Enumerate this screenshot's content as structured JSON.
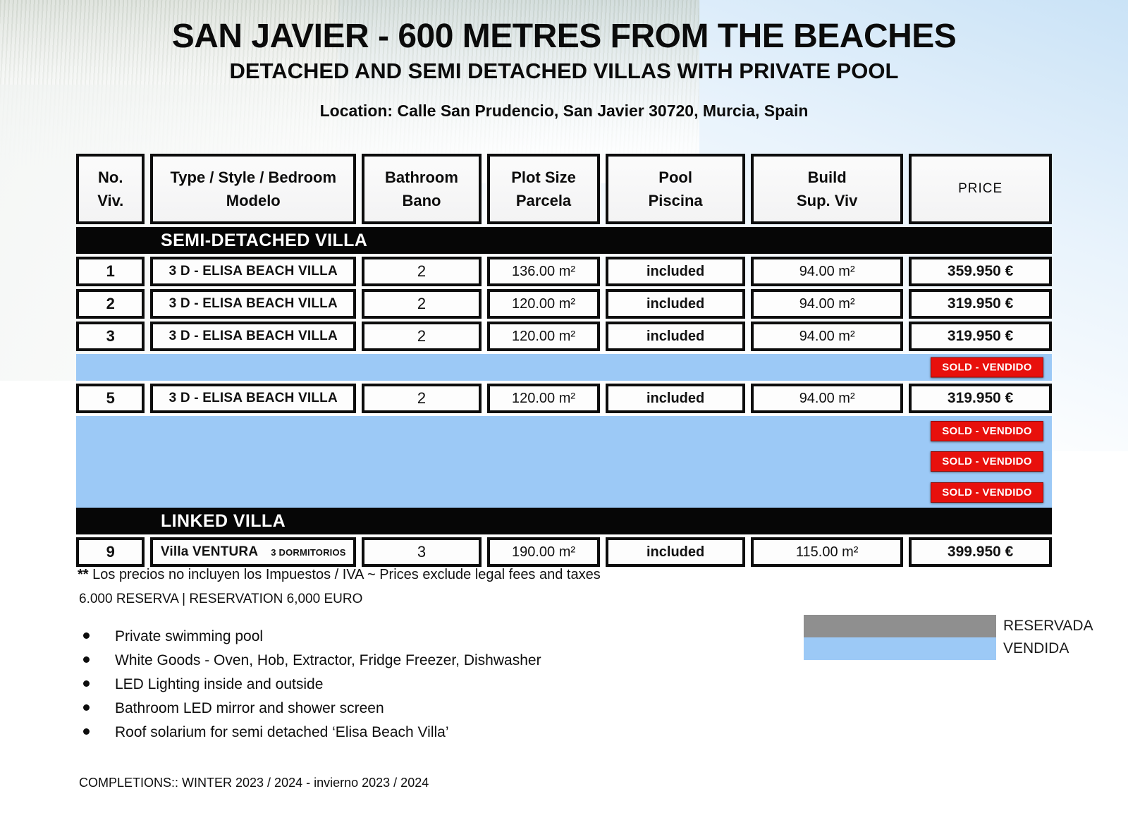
{
  "header": {
    "title": "SAN JAVIER - 600 METRES FROM THE BEACHES",
    "subtitle": "DETACHED AND SEMI DETACHED VILLAS WITH PRIVATE POOL",
    "location": "Location: Calle San Prudencio, San Javier 30720, Murcia, Spain"
  },
  "table": {
    "columns": [
      {
        "l1": "No.",
        "l2": "Viv."
      },
      {
        "l1": "Type / Style / Bedroom",
        "l2": "Modelo"
      },
      {
        "l1": "Bathroom",
        "l2": "Bano"
      },
      {
        "l1": "Plot Size",
        "l2": "Parcela"
      },
      {
        "l1": "Pool",
        "l2": "Piscina"
      },
      {
        "l1": "Build",
        "l2": "Sup. Viv"
      },
      {
        "l1": "PRICE",
        "l2": ""
      }
    ],
    "sections": [
      {
        "label": "SEMI-DETACHED VILLA",
        "rows": [
          {
            "kind": "data",
            "no": "1",
            "model": "3 D - ELISA BEACH VILLA",
            "bath": "2",
            "plot": "136.00 m²",
            "pool": "included",
            "build": "94.00 m²",
            "price": "359.950 €"
          },
          {
            "kind": "data",
            "no": "2",
            "model": "3 D - ELISA BEACH VILLA",
            "bath": "2",
            "plot": "120.00 m²",
            "pool": "included",
            "build": "94.00 m²",
            "price": "319.950 €"
          },
          {
            "kind": "data",
            "no": "3",
            "model": "3 D - ELISA BEACH VILLA",
            "bath": "2",
            "plot": "120.00 m²",
            "pool": "included",
            "build": "94.00 m²",
            "price": "319.950 €"
          },
          {
            "kind": "sold",
            "badge": "SOLD - VENDIDO"
          },
          {
            "kind": "data",
            "no": "5",
            "model": "3 D - ELISA BEACH VILLA",
            "bath": "2",
            "plot": "120.00 m²",
            "pool": "included",
            "build": "94.00 m²",
            "price": "319.950 €"
          },
          {
            "kind": "sold_group",
            "badges": [
              "SOLD - VENDIDO",
              "SOLD - VENDIDO",
              "SOLD - VENDIDO"
            ]
          }
        ]
      },
      {
        "label": "LINKED VILLA",
        "rows": [
          {
            "kind": "data",
            "no": "9",
            "model": "Villa VENTURA",
            "model_sub": "3 DORMITORIOS",
            "bath": "3",
            "plot": "190.00 m²",
            "pool": "included",
            "build": "115.00 m²",
            "price": "399.950 €"
          }
        ]
      }
    ]
  },
  "notes": {
    "tax_note_prefix": "**",
    "tax_note": " Los precios no incluyen los Impuestos / IVA ~ Prices exclude legal fees and taxes",
    "reservation_note": "6.000  RESERVA | RESERVATION  6,000 EURO"
  },
  "legend": {
    "items": [
      {
        "label": "RESERVADA",
        "color": "#8f8f8f"
      },
      {
        "label": "VENDIDA",
        "color": "#9cc9f6"
      }
    ]
  },
  "features": {
    "items": [
      "Private swimming pool",
      "White Goods - Oven, Hob, Extractor, Fridge Freezer, Dishwasher",
      "LED Lighting inside and outside",
      "Bathroom LED mirror and shower screen",
      "Roof solarium for semi detached ‘Elisa Beach Villa’"
    ]
  },
  "completions": "COMPLETIONS::  WINTER 2023 / 2024 - invierno 2023 / 2024",
  "colors": {
    "sold_blue": "#9cc9f6",
    "sold_red": "#e8100c",
    "reserved_gray": "#8f8f8f",
    "section_black": "#060606"
  }
}
